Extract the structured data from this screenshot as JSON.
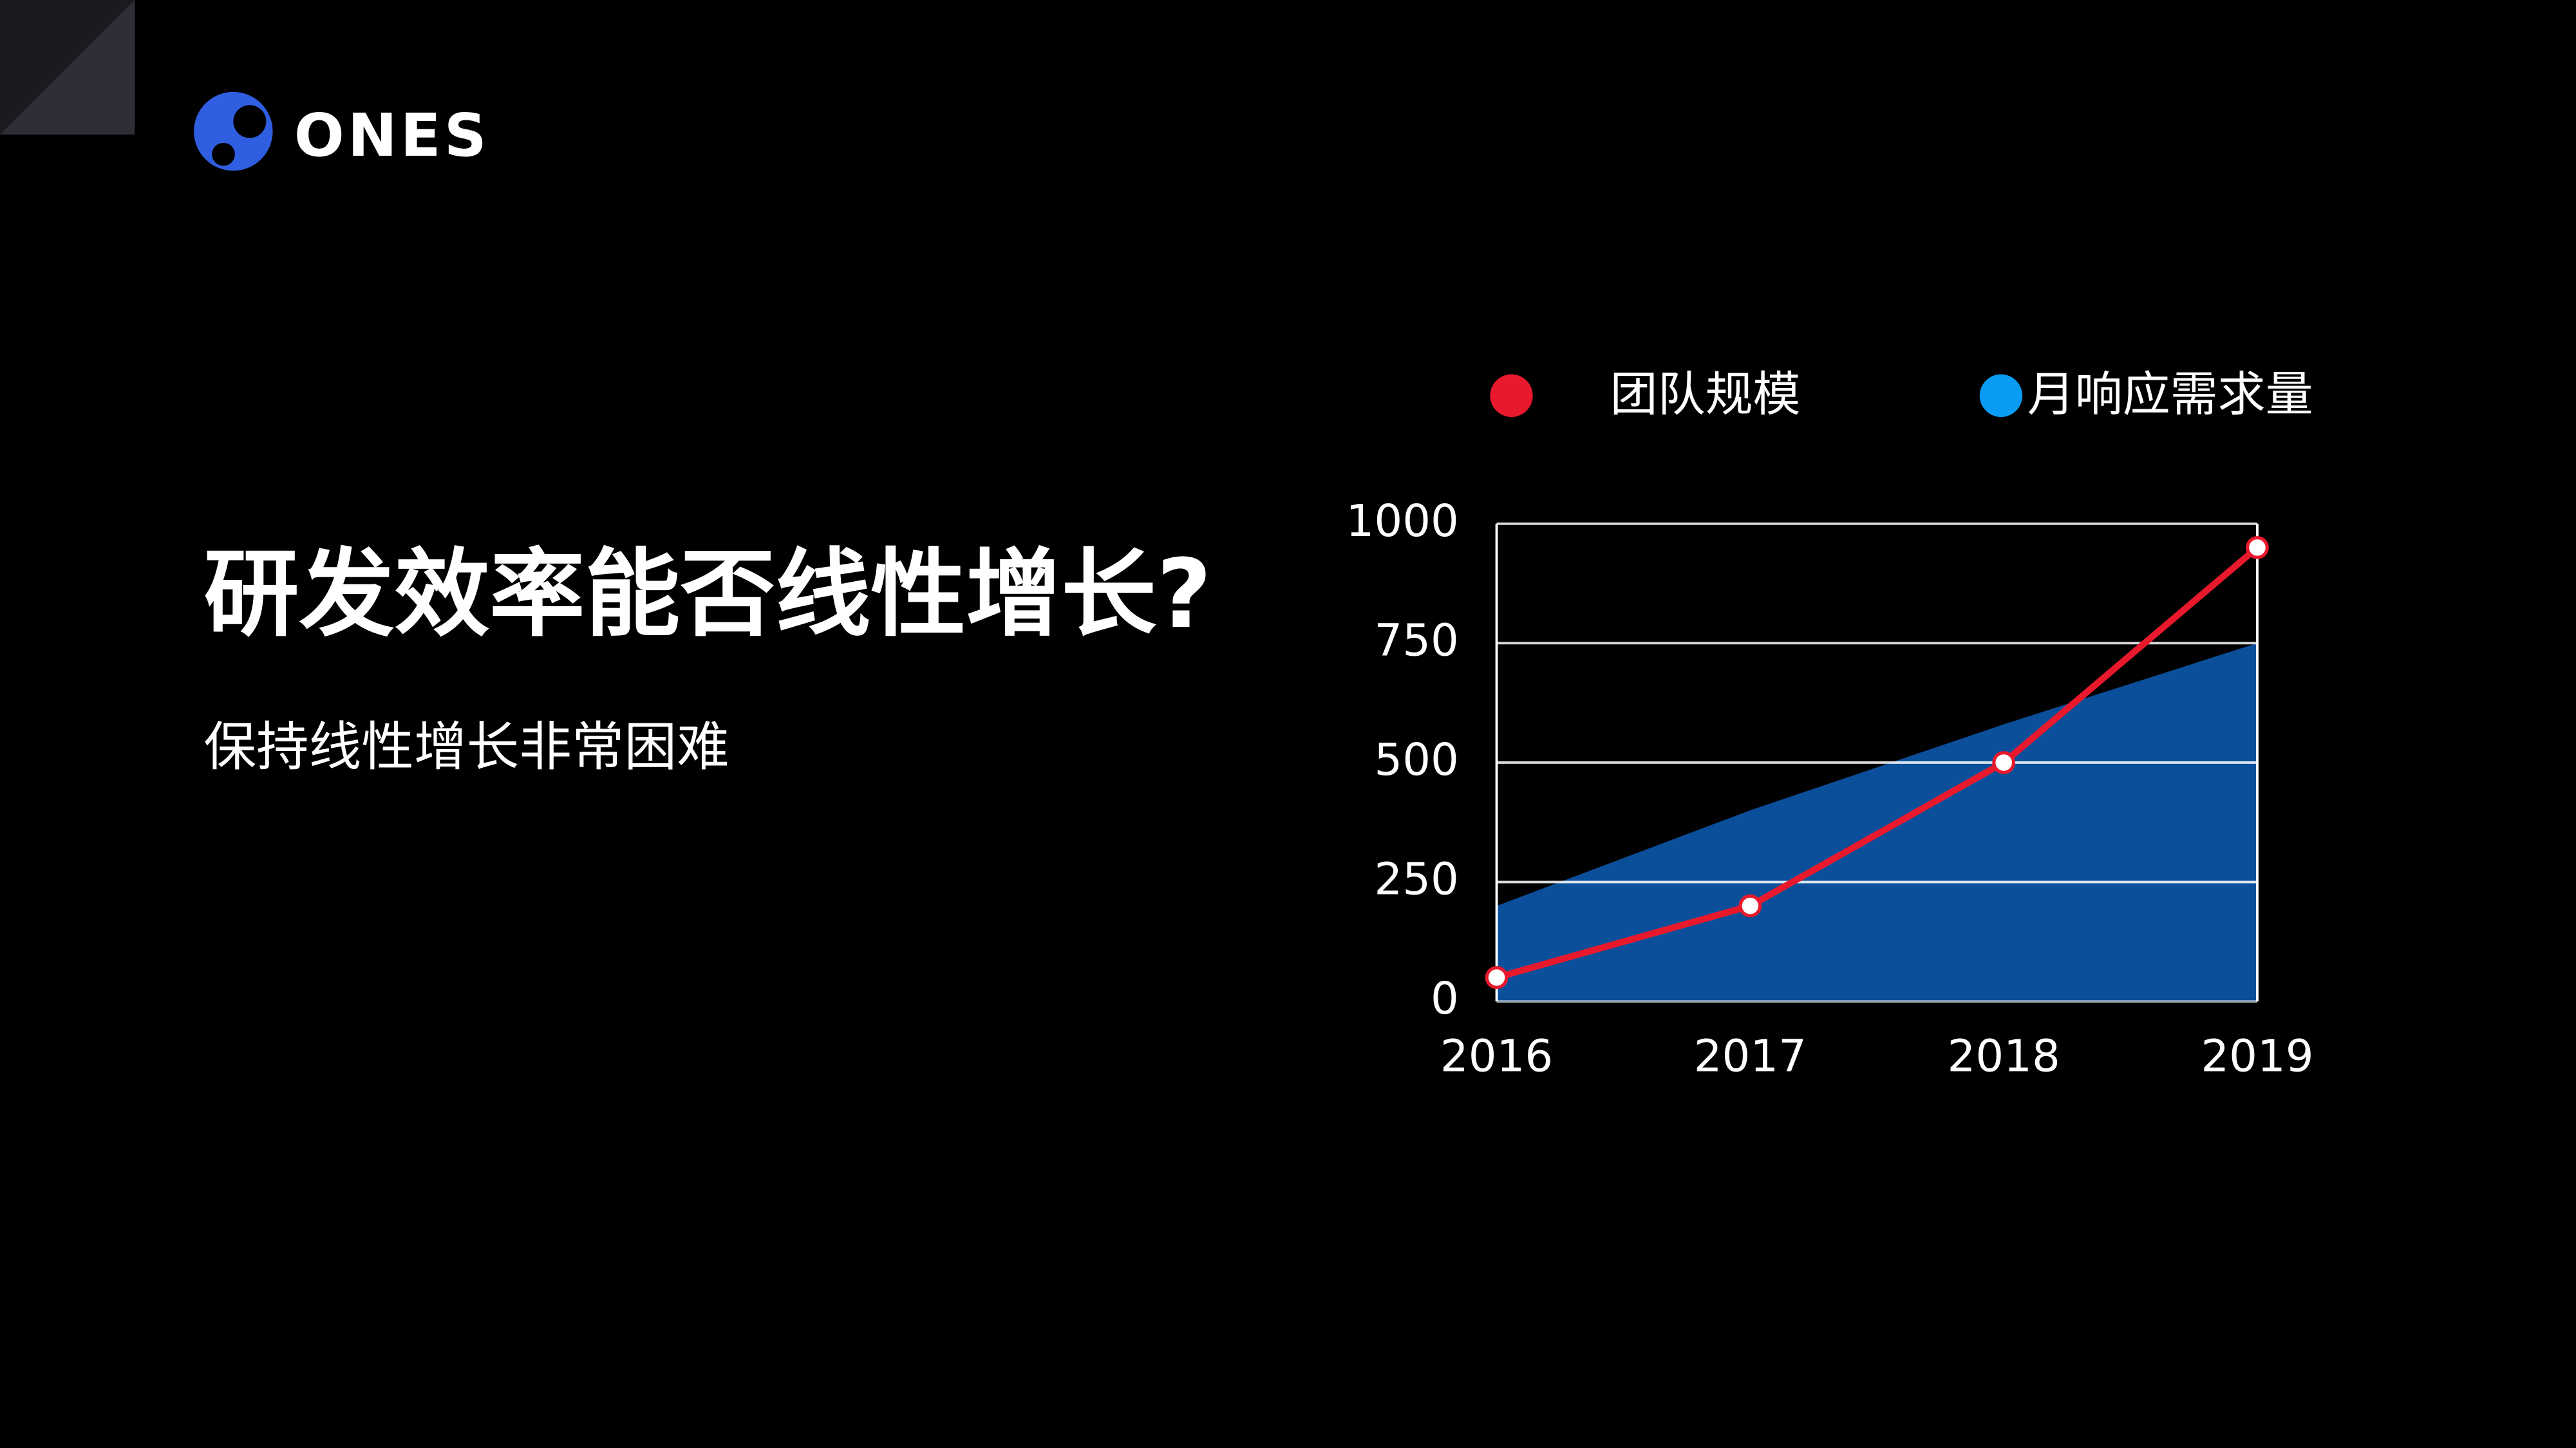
{
  "logo": "ONES",
  "heading": "研发效率能否线性增长?",
  "subheading": "保持线性增长非常困难",
  "chart_data": {
    "type": "line",
    "x": [
      2016,
      2017,
      2018,
      2019
    ],
    "xlim": [
      2016,
      2019
    ],
    "xticks": [
      2016,
      2017,
      2018,
      2019
    ],
    "ylim": [
      0,
      1000
    ],
    "yticks": [
      0,
      250,
      500,
      750,
      1000
    ],
    "grid": true,
    "legend": "top",
    "series": [
      {
        "name": "团队规模",
        "color": "#e8192c",
        "type": "line",
        "values": [
          50,
          200,
          500,
          950
        ]
      },
      {
        "name": "月响应需求量",
        "color": "#0b4f9a",
        "legend_color": "#0a9cf5",
        "type": "area",
        "values": [
          200,
          400,
          580,
          750
        ]
      }
    ]
  }
}
